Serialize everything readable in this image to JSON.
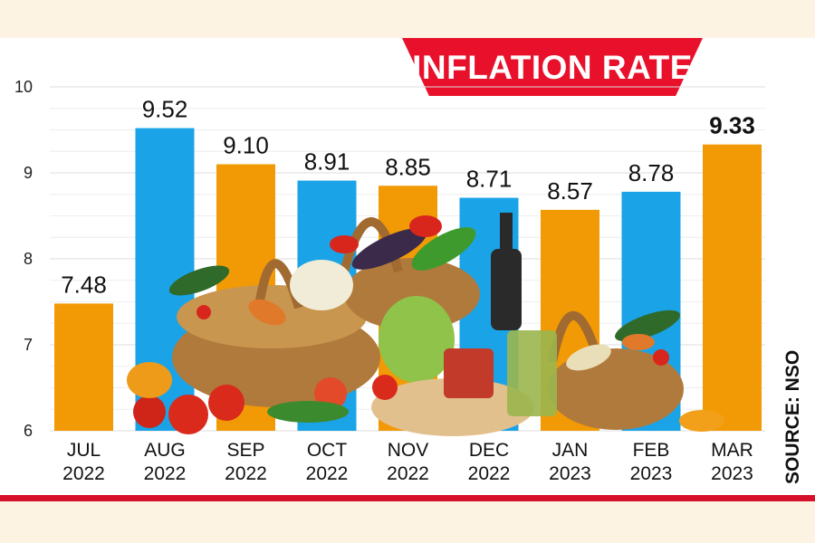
{
  "title": "INFLATION RATE",
  "source": "SOURCE: NSO",
  "colors": {
    "orange": "#f29a05",
    "blue": "#1aa3e6",
    "banner": "#e8102b",
    "grid": "#dcdcdc"
  },
  "chart_data": {
    "type": "bar",
    "title": "INFLATION RATE",
    "categories": [
      [
        "JUL",
        "2022"
      ],
      [
        "AUG",
        "2022"
      ],
      [
        "SEP",
        "2022"
      ],
      [
        "OCT",
        "2022"
      ],
      [
        "NOV",
        "2022"
      ],
      [
        "DEC",
        "2022"
      ],
      [
        "JAN",
        "2023"
      ],
      [
        "FEB",
        "2023"
      ],
      [
        "MAR",
        "2023"
      ]
    ],
    "values": [
      7.48,
      9.52,
      9.1,
      8.91,
      8.85,
      8.71,
      8.57,
      8.78,
      9.33
    ],
    "value_labels": [
      "7.48",
      "9.52",
      "9.10",
      "8.91",
      "8.85",
      "8.71",
      "8.57",
      "8.78",
      "9.33"
    ],
    "bar_colors": [
      "orange",
      "blue",
      "orange",
      "blue",
      "orange",
      "blue",
      "orange",
      "blue",
      "orange"
    ],
    "ylim": [
      6,
      10
    ],
    "yticks": [
      6,
      7,
      8,
      9,
      10
    ],
    "grid": true,
    "background_image": "grocery-baskets-vegetables"
  }
}
